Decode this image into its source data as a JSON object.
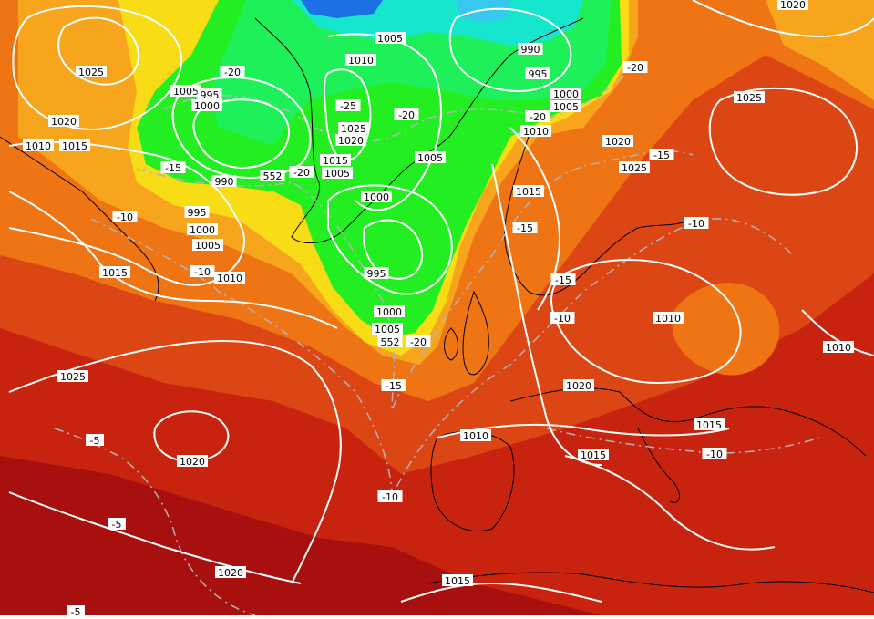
{
  "map": {
    "colors": {
      "deep_red": "#a80f0f",
      "red": "#c8230f",
      "red_orange": "#dc4614",
      "orange": "#ef7414",
      "light_orange": "#f8a51e",
      "yellow": "#f8dc16",
      "green": "#22ee22",
      "bright_green": "#1ef05a",
      "cyan": "#17e6cf",
      "blue": "#1e6ee6",
      "isobar": "#ffffff",
      "isotherm": "#b4b4b4",
      "coast": "#000000"
    },
    "isobar_labels": [
      "1025",
      "1020",
      "1010",
      "1015",
      "1005",
      "995",
      "1000",
      "990",
      "995",
      "1000",
      "1005",
      "1015",
      "1010",
      "1005",
      "1010",
      "1025",
      "1020",
      "1015",
      "1005",
      "1005",
      "1000",
      "995",
      "1000",
      "1005",
      "990",
      "995",
      "1000",
      "1005",
      "1010",
      "1020",
      "1025",
      "1025",
      "1020",
      "1015",
      "1010",
      "1020",
      "1010",
      "1015",
      "1020",
      "1015",
      "1020",
      "1025",
      "1015",
      "1010"
    ],
    "isotherm_labels": [
      "-20",
      "-15",
      "-10",
      "-10",
      "-20",
      "-25",
      "-20",
      "-15",
      "-20",
      "-20",
      "-15",
      "-15",
      "-10",
      "-10",
      "-15",
      "-5",
      "-5",
      "-10",
      "-10",
      "-15",
      "-5",
      "-20",
      "-20",
      "-15",
      "-10",
      "-10",
      "-5"
    ],
    "height_labels": [
      "552",
      "552"
    ]
  }
}
